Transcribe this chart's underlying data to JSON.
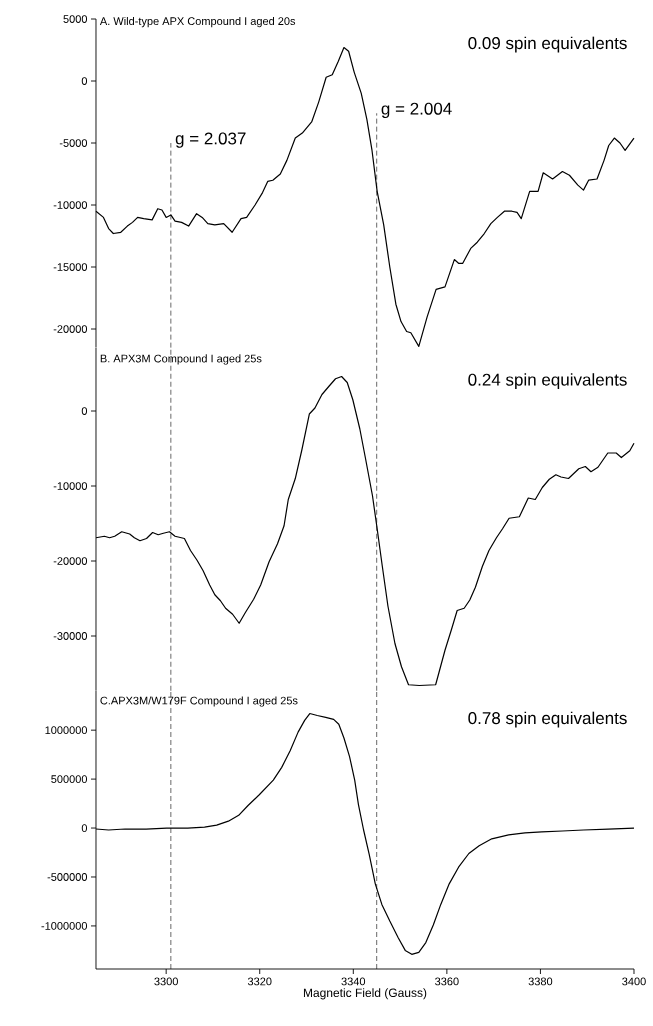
{
  "chart_data": [
    {
      "type": "line",
      "title": "A. Wild-type APX Compound I  aged 20s",
      "annotations": [
        "0.09 spin equivalents",
        {
          "text": "g = 2.037",
          "x": 3301,
          "y": -5000
        },
        {
          "text": "g = 2.004",
          "x": 3345,
          "y": -2600
        }
      ],
      "color": "#000000",
      "line_style": "solid",
      "tick_labels": "y",
      "xlim": [
        3285,
        3400
      ],
      "ylim": [
        -21500,
        5000
      ],
      "yticks": [
        5000,
        0,
        -5000,
        -10000,
        -15000,
        -20000
      ],
      "ref_lines": [
        {
          "axis": "x",
          "value": 3301,
          "line_style": "dashed"
        },
        {
          "axis": "x",
          "value": 3345,
          "line_style": "dashed"
        }
      ],
      "x": [
        3285,
        3286.6,
        3287.7,
        3288.7,
        3290.3,
        3291.7,
        3292.8,
        3293.9,
        3295.2,
        3297,
        3298.2,
        3299.1,
        3300,
        3301,
        3301.9,
        3303.3,
        3304.8,
        3306.5,
        3307.7,
        3308.9,
        3310.4,
        3312.3,
        3314.1,
        3316,
        3317.2,
        3319,
        3320.6,
        3321.7,
        3322.8,
        3324.4,
        3325.8,
        3327.6,
        3329.1,
        3331.1,
        3332.6,
        3334.2,
        3335.5,
        3336.8,
        3338,
        3339,
        3340.2,
        3341.7,
        3342.9,
        3344,
        3345.1,
        3346.5,
        3347.8,
        3349.1,
        3350.2,
        3351.4,
        3352.3,
        3354,
        3355.8,
        3357.7,
        3359.6,
        3361.6,
        3362.5,
        3363.4,
        3365.1,
        3366.5,
        3368,
        3369.4,
        3370.8,
        3372.3,
        3373.9,
        3375,
        3375.9,
        3377.7,
        3379.5,
        3380.6,
        3382.6,
        3384.7,
        3386.2,
        3388,
        3389.2,
        3390.3,
        3392.1,
        3393.6,
        3394.6,
        3395.8,
        3397,
        3398.1,
        3400
      ],
      "values": [
        -10500,
        -11000,
        -11900,
        -12300,
        -12200,
        -11700,
        -11400,
        -11000,
        -11100,
        -11200,
        -10300,
        -10400,
        -11000,
        -10800,
        -11300,
        -11400,
        -11700,
        -10700,
        -11000,
        -11500,
        -11600,
        -11500,
        -12200,
        -11100,
        -11000,
        -10000,
        -9000,
        -8100,
        -8000,
        -7500,
        -6400,
        -4600,
        -4200,
        -3300,
        -1700,
        300,
        500,
        1600,
        2700,
        2400,
        700,
        -1000,
        -3100,
        -5600,
        -8900,
        -11600,
        -15000,
        -18000,
        -19400,
        -20200,
        -20300,
        -21400,
        -19000,
        -16800,
        -16600,
        -14400,
        -14700,
        -14700,
        -13500,
        -13000,
        -12300,
        -11500,
        -11000,
        -10500,
        -10500,
        -10600,
        -11100,
        -8900,
        -8900,
        -7400,
        -7900,
        -7300,
        -7600,
        -8400,
        -8800,
        -8000,
        -7900,
        -6400,
        -5200,
        -4600,
        -5000,
        -5600,
        -4600
      ]
    },
    {
      "type": "line",
      "title": "B. APX3M Compound I aged 25s",
      "annotations": [
        "0.24 spin equivalents"
      ],
      "color": "#000000",
      "line_style": "solid",
      "tick_labels": "y",
      "xlim": [
        3285,
        3400
      ],
      "ylim": [
        -37300,
        8400
      ],
      "yticks": [
        0,
        -10000,
        -20000,
        -30000
      ],
      "ref_lines": [
        {
          "axis": "x",
          "value": 3301,
          "line_style": "dashed"
        },
        {
          "axis": "x",
          "value": 3345,
          "line_style": "dashed"
        }
      ],
      "x": [
        3285,
        3286.8,
        3287.9,
        3289,
        3290.5,
        3292.2,
        3293.2,
        3294.4,
        3295.8,
        3297.1,
        3298.3,
        3299.4,
        3300.7,
        3301.9,
        3303.9,
        3305.2,
        3306.6,
        3307.9,
        3309.3,
        3310.4,
        3311.6,
        3312.7,
        3314.2,
        3315.6,
        3316.9,
        3318.7,
        3320.2,
        3322,
        3323.8,
        3325.2,
        3326.1,
        3327.6,
        3329,
        3330.6,
        3331.8,
        3333.3,
        3334.8,
        3336.2,
        3337.5,
        3338.7,
        3339.9,
        3341.4,
        3342.6,
        3344.1,
        3345.1,
        3346.2,
        3347.4,
        3348.9,
        3350.3,
        3351.8,
        3354.1,
        3357.6,
        3358.3,
        3359.6,
        3361,
        3362.2,
        3363.7,
        3364.9,
        3366.1,
        3367.6,
        3369,
        3370.6,
        3371.9,
        3373.3,
        3374.4,
        3375.5,
        3377.4,
        3378.9,
        3380.4,
        3381.9,
        3383.3,
        3384.4,
        3386,
        3388.2,
        3389.6,
        3390.8,
        3392.3,
        3394.4,
        3396.2,
        3397.3,
        3399.1,
        3400
      ],
      "values": [
        -16900,
        -16700,
        -16900,
        -16700,
        -16100,
        -16400,
        -16900,
        -17300,
        -17000,
        -16200,
        -16500,
        -16300,
        -16100,
        -16700,
        -17000,
        -18600,
        -19900,
        -21300,
        -23200,
        -24500,
        -25300,
        -26300,
        -27100,
        -28300,
        -26900,
        -25100,
        -23200,
        -20100,
        -17700,
        -15300,
        -11800,
        -9000,
        -5200,
        -400,
        400,
        2200,
        3300,
        4300,
        4600,
        3800,
        1500,
        -2400,
        -6300,
        -11300,
        -15700,
        -20700,
        -26000,
        -31000,
        -34100,
        -36500,
        -36600,
        -36500,
        -34900,
        -31900,
        -29100,
        -26600,
        -26300,
        -25200,
        -23500,
        -20700,
        -18600,
        -16900,
        -15700,
        -14300,
        -14200,
        -14100,
        -11600,
        -11800,
        -10200,
        -9100,
        -8500,
        -8800,
        -9000,
        -7700,
        -7400,
        -8100,
        -7500,
        -5600,
        -5600,
        -6200,
        -5300,
        -4300
      ]
    },
    {
      "type": "line",
      "title": "C.APX3M/W179F Compound I aged 25s",
      "annotations": [
        "0.78 spin equivalents"
      ],
      "color": "#000000",
      "line_style": "solid",
      "xlabel": "Magnetic Field (Gauss)",
      "xlim": [
        3285,
        3400
      ],
      "ylim": [
        -1440000,
        1400000
      ],
      "xticks": [
        3300,
        3320,
        3340,
        3360,
        3380,
        3400
      ],
      "yticks": [
        1000000,
        500000,
        0,
        -500000,
        -1000000
      ],
      "ref_lines": [
        {
          "axis": "x",
          "value": 3301,
          "line_style": "dashed"
        },
        {
          "axis": "x",
          "value": 3345,
          "line_style": "dashed"
        }
      ],
      "x": [
        3285,
        3287.7,
        3291.2,
        3295.7,
        3300.1,
        3304.6,
        3308.2,
        3310.8,
        3313.3,
        3315.5,
        3317.5,
        3319.9,
        3322.9,
        3324.7,
        3326.5,
        3328.2,
        3329.6,
        3330.7,
        3332.3,
        3334.1,
        3335.8,
        3336.9,
        3338,
        3339.2,
        3340.3,
        3341.1,
        3342.2,
        3343.4,
        3344.7,
        3346.1,
        3347.8,
        3349.6,
        3351.1,
        3352.5,
        3354,
        3355.5,
        3357.1,
        3358.7,
        3360.5,
        3362.5,
        3364.7,
        3366.9,
        3369.6,
        3373.2,
        3376.7,
        3380.3,
        3384.7,
        3389.2,
        3394.5,
        3400
      ],
      "values": [
        -10000,
        -20000,
        -10000,
        -10000,
        0,
        0,
        10000,
        30000,
        70000,
        130000,
        230000,
        340000,
        490000,
        620000,
        790000,
        980000,
        1100000,
        1170000,
        1150000,
        1130000,
        1110000,
        1060000,
        920000,
        730000,
        490000,
        240000,
        -20000,
        -270000,
        -570000,
        -780000,
        -950000,
        -1120000,
        -1250000,
        -1290000,
        -1270000,
        -1170000,
        -990000,
        -780000,
        -570000,
        -400000,
        -260000,
        -180000,
        -110000,
        -70000,
        -50000,
        -40000,
        -30000,
        -20000,
        -10000,
        0
      ]
    }
  ]
}
